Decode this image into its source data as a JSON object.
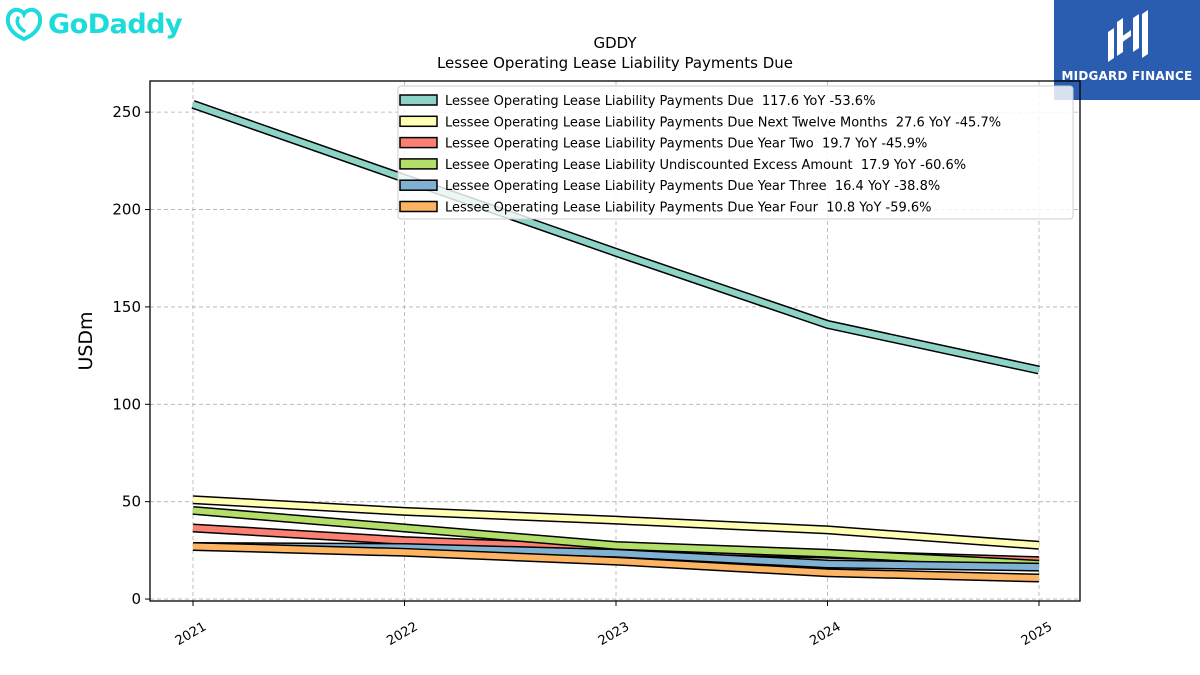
{
  "branding": {
    "company_logo_text": "GoDaddy",
    "publisher_logo_text": "MIDGARD FINANCE",
    "company_color": "#1bdbdb",
    "publisher_bg": "#2a5db0"
  },
  "chart_data": {
    "type": "line",
    "title": "GDDY",
    "subtitle": "Lessee Operating Lease Liability Payments Due",
    "ylabel": "USDm",
    "xlabel": "",
    "x": [
      "2021",
      "2022",
      "2023",
      "2024",
      "2025"
    ],
    "ylim": [
      -1,
      266
    ],
    "yticks": [
      0,
      50,
      100,
      150,
      200,
      250
    ],
    "grid": true,
    "legend_position": "top-right",
    "series": [
      {
        "name": "Lessee Operating Lease Liability Payments Due  117.6 YoY -53.6%",
        "color": "#8dd3c7",
        "values": [
          254,
          216,
          178,
          141,
          117.6
        ]
      },
      {
        "name": "Lessee Operating Lease Liability Payments Due Next Twelve Months  27.6 YoY -45.7%",
        "color": "#ffffb3",
        "values": [
          51,
          45,
          40.5,
          35.5,
          27.6
        ]
      },
      {
        "name": "Lessee Operating Lease Liability Payments Due Year Two  19.7 YoY -45.9%",
        "color": "#fb8072",
        "values": [
          36.5,
          30,
          26,
          23,
          19.7
        ]
      },
      {
        "name": "Lessee Operating Lease Liability Undiscounted Excess Amount  17.9 YoY -60.6%",
        "color": "#b3de69",
        "values": [
          45.5,
          36.5,
          27.5,
          23.5,
          17.9
        ]
      },
      {
        "name": "Lessee Operating Lease Liability Payments Due Year Three  16.4 YoY -38.8%",
        "color": "#80b1d3",
        "values": [
          27,
          26.5,
          23.5,
          18,
          16.4
        ]
      },
      {
        "name": "Lessee Operating Lease Liability Payments Due Year Four  10.8 YoY -59.6%",
        "color": "#fdb462",
        "values": [
          27,
          24,
          19.5,
          13.5,
          10.8
        ]
      }
    ]
  }
}
